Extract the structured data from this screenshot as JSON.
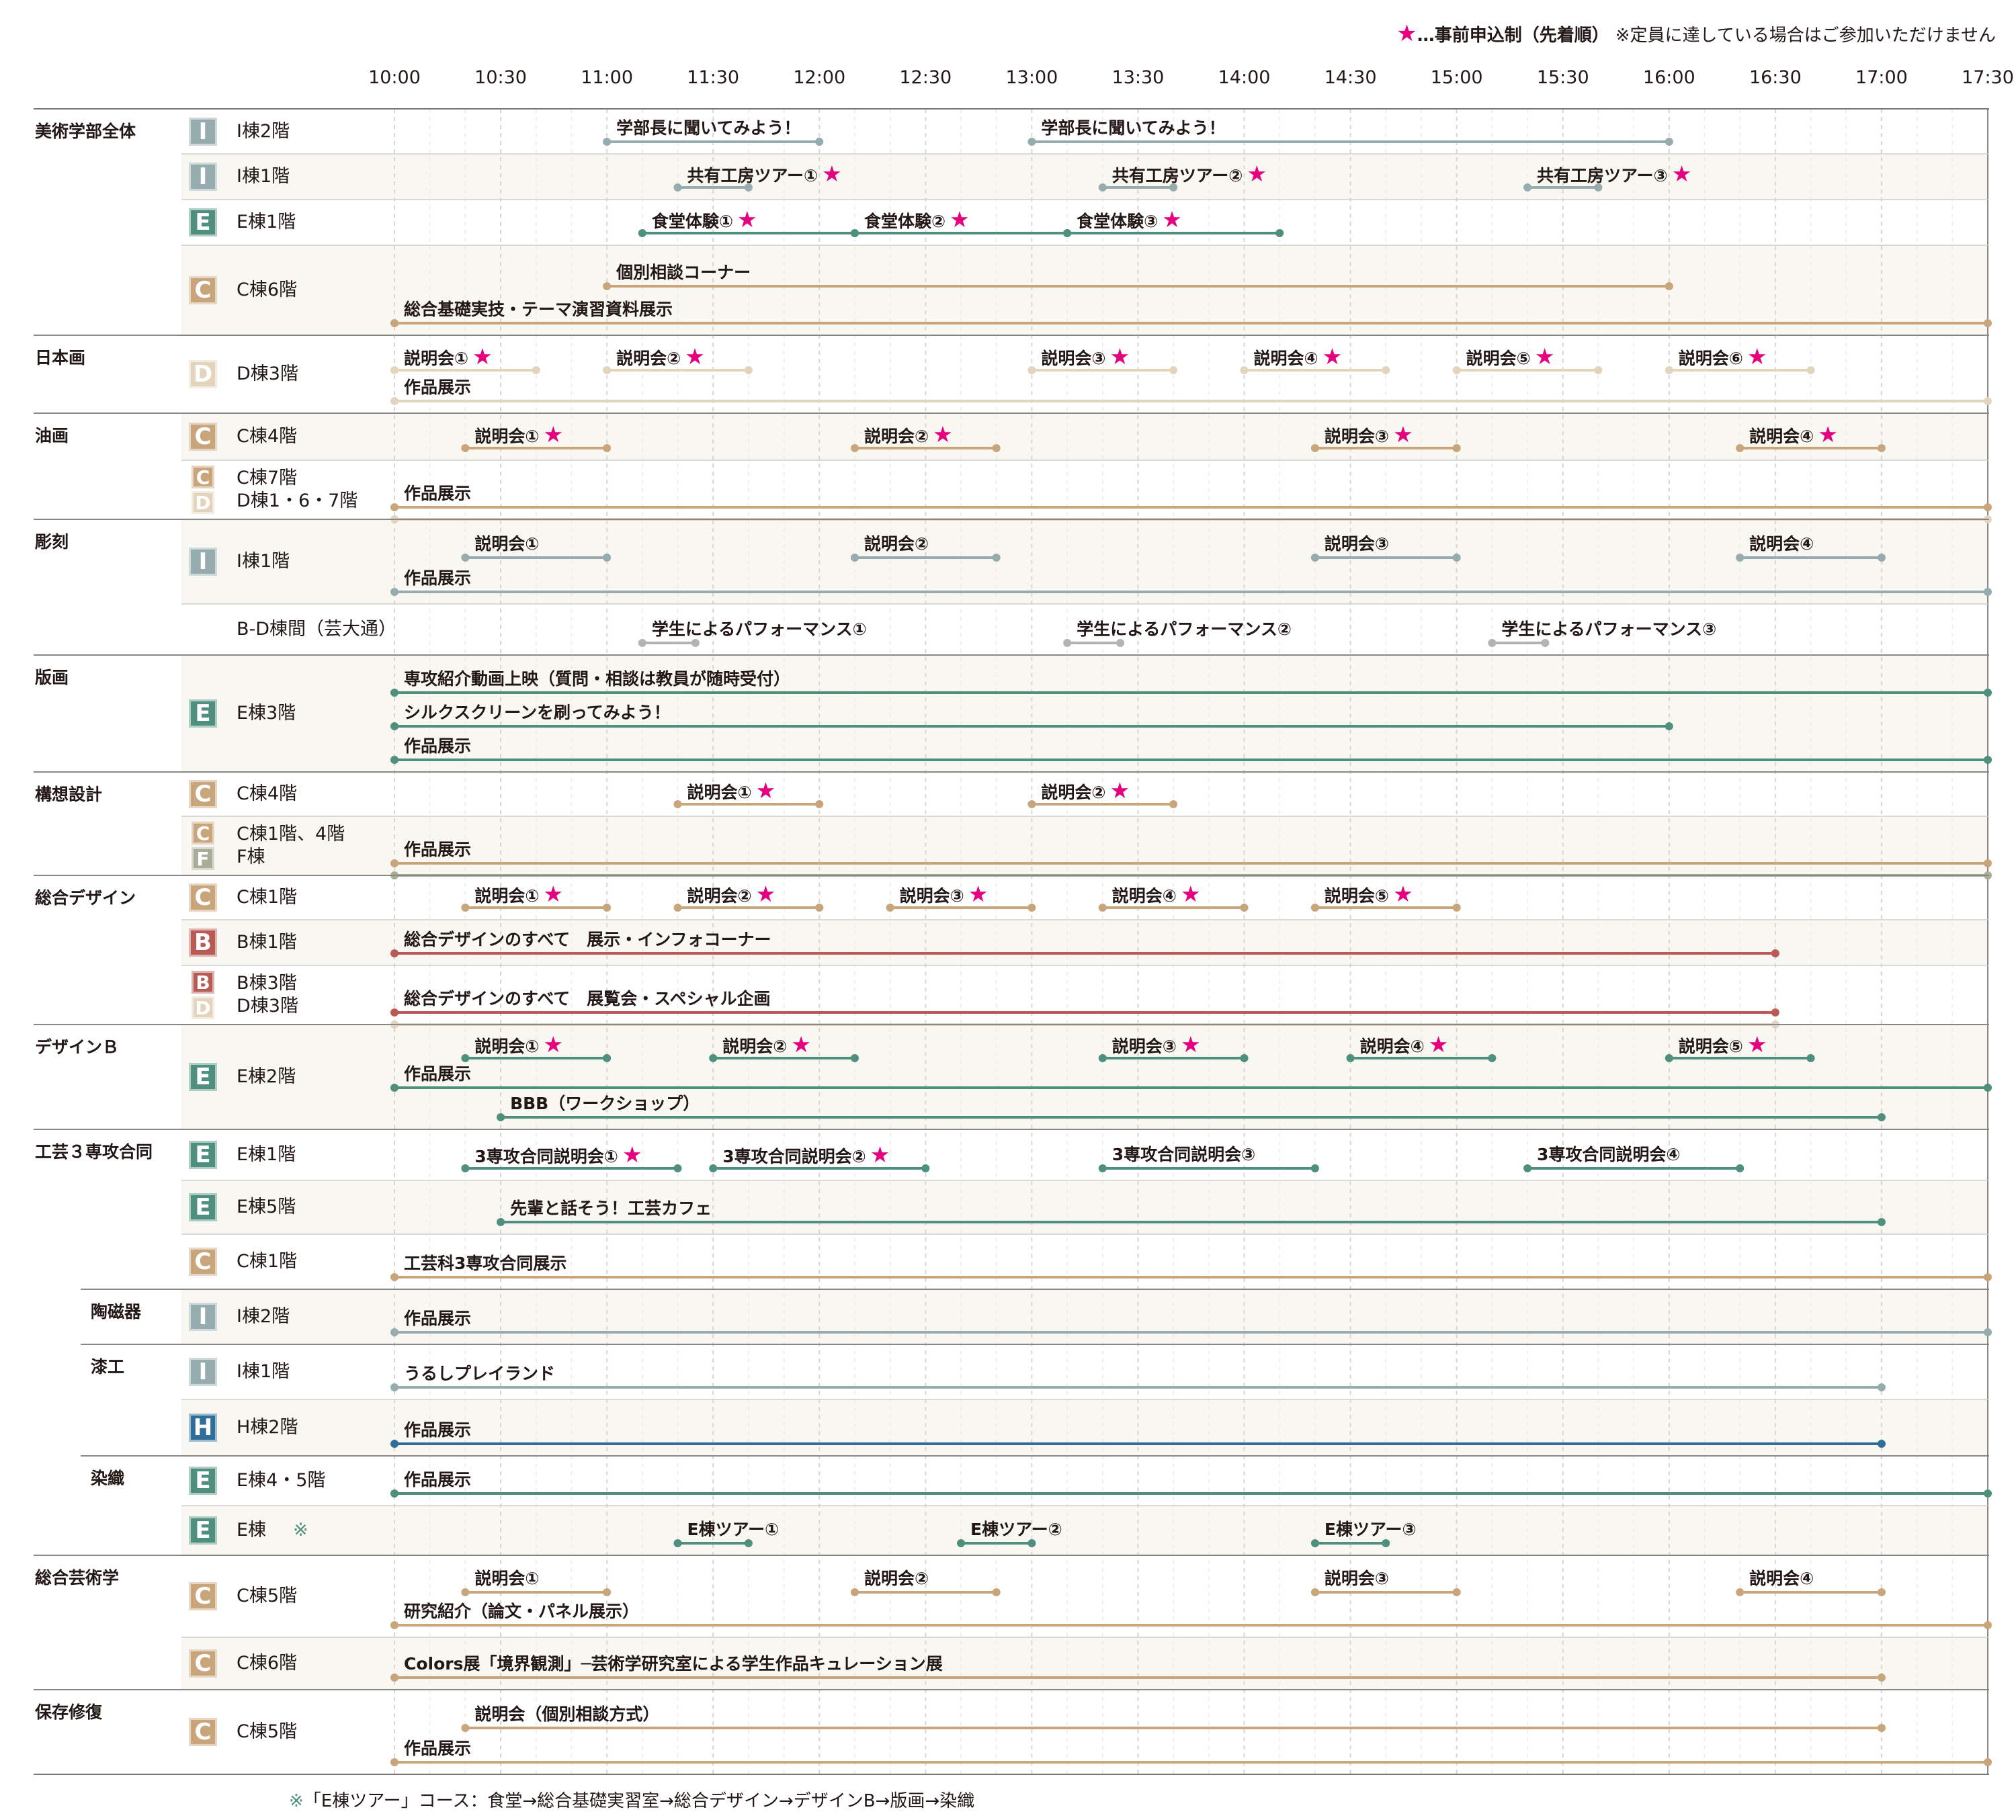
{
  "legend": {
    "star": "★",
    "text": "…事前申込制（先着順）",
    "note": "※定員に達している場合はご参加いただけません"
  },
  "time_axis": [
    "10:00",
    "10:30",
    "11:00",
    "11:30",
    "12:00",
    "12:30",
    "13:00",
    "13:30",
    "14:00",
    "14:30",
    "15:00",
    "15:30",
    "16:00",
    "16:30",
    "17:00",
    "17:30"
  ],
  "colors": {
    "I": "#96acae",
    "E": "#4e8f7e",
    "C": "#c9a57c",
    "D": "#e3d4bd",
    "B": "#b85b55",
    "F": "#a8ad95",
    "H": "#2f6e98",
    "gray": "#b3b3b3",
    "star": "#e4007f"
  },
  "sections": [
    {
      "name": "美術学部全体",
      "rows": [
        {
          "badges": [
            "I"
          ],
          "floor": [
            "I棟2階"
          ],
          "events": [
            {
              "label": "学部長に聞いてみよう！",
              "start": "11:00",
              "end": "12:00",
              "color": "I"
            },
            {
              "label": "学部長に聞いてみよう！",
              "start": "13:00",
              "end": "16:00",
              "color": "I"
            }
          ]
        },
        {
          "badges": [
            "I"
          ],
          "floor": [
            "I棟1階"
          ],
          "events": [
            {
              "label": "共有工房ツアー①",
              "star": true,
              "start": "11:20",
              "end": "11:40",
              "color": "I"
            },
            {
              "label": "共有工房ツアー②",
              "star": true,
              "start": "13:20",
              "end": "13:40",
              "color": "I"
            },
            {
              "label": "共有工房ツアー③",
              "star": true,
              "start": "15:20",
              "end": "15:40",
              "color": "I"
            }
          ]
        },
        {
          "badges": [
            "E"
          ],
          "floor": [
            "E棟1階"
          ],
          "events": [
            {
              "label": "食堂体験①",
              "star": true,
              "start": "11:10",
              "end": "12:10",
              "color": "E"
            },
            {
              "label": "食堂体験②",
              "star": true,
              "start": "12:10",
              "end": "13:10",
              "color": "E"
            },
            {
              "label": "食堂体験③",
              "star": true,
              "start": "13:10",
              "end": "14:10",
              "color": "E"
            }
          ]
        },
        {
          "badges": [
            "C"
          ],
          "floor": [
            "C棟6階"
          ],
          "events": [
            {
              "label": "個別相談コーナー",
              "start": "11:00",
              "end": "16:00",
              "color": "C"
            },
            {
              "label": "総合基礎実技・テーマ演習資料展示",
              "start": "10:00",
              "end": "17:30",
              "color": "C"
            }
          ]
        }
      ]
    },
    {
      "name": "日本画",
      "rows": [
        {
          "badges": [
            "D"
          ],
          "floor": [
            "D棟3階"
          ],
          "events": [
            {
              "label": "説明会①",
              "star": true,
              "start": "10:00",
              "end": "10:40",
              "color": "D"
            },
            {
              "label": "説明会②",
              "star": true,
              "start": "11:00",
              "end": "11:40",
              "color": "D"
            },
            {
              "label": "説明会③",
              "star": true,
              "start": "13:00",
              "end": "13:40",
              "color": "D"
            },
            {
              "label": "説明会④",
              "star": true,
              "start": "14:00",
              "end": "14:40",
              "color": "D"
            },
            {
              "label": "説明会⑤",
              "star": true,
              "start": "15:00",
              "end": "15:40",
              "color": "D"
            },
            {
              "label": "説明会⑥",
              "star": true,
              "start": "16:00",
              "end": "16:40",
              "color": "D"
            },
            {
              "label": "作品展示",
              "start": "10:00",
              "end": "17:30",
              "color": "D"
            }
          ]
        }
      ]
    },
    {
      "name": "油画",
      "rows": [
        {
          "badges": [
            "C"
          ],
          "floor": [
            "C棟4階"
          ],
          "events": [
            {
              "label": "説明会①",
              "star": true,
              "start": "10:20",
              "end": "11:00",
              "color": "C"
            },
            {
              "label": "説明会②",
              "star": true,
              "start": "12:10",
              "end": "12:50",
              "color": "C"
            },
            {
              "label": "説明会③",
              "star": true,
              "start": "14:20",
              "end": "15:00",
              "color": "C"
            },
            {
              "label": "説明会④",
              "star": true,
              "start": "16:20",
              "end": "17:00",
              "color": "C"
            }
          ]
        },
        {
          "badges": [
            "C",
            "D"
          ],
          "floor": [
            "C棟7階",
            "D棟1・6・7階"
          ],
          "events": [
            {
              "label": "作品展示",
              "start": "10:00",
              "end": "17:30",
              "color": "C"
            },
            {
              "label": "",
              "start": "10:00",
              "end": "17:30",
              "color": "D"
            }
          ]
        }
      ]
    },
    {
      "name": "彫刻",
      "rows": [
        {
          "badges": [
            "I"
          ],
          "floor": [
            "I棟1階"
          ],
          "events": [
            {
              "label": "説明会①",
              "start": "10:20",
              "end": "11:00",
              "color": "I"
            },
            {
              "label": "説明会②",
              "start": "12:10",
              "end": "12:50",
              "color": "I"
            },
            {
              "label": "説明会③",
              "start": "14:20",
              "end": "15:00",
              "color": "I"
            },
            {
              "label": "説明会④",
              "start": "16:20",
              "end": "17:00",
              "color": "I"
            },
            {
              "label": "作品展示",
              "start": "10:00",
              "end": "17:30",
              "color": "I"
            }
          ]
        },
        {
          "badges": [],
          "floor": [
            "B-D棟間（芸大通）"
          ],
          "events": [
            {
              "label": "学生によるパフォーマンス①",
              "start": "11:10",
              "end": "11:25",
              "color": "gray"
            },
            {
              "label": "学生によるパフォーマンス②",
              "start": "13:10",
              "end": "13:25",
              "color": "gray"
            },
            {
              "label": "学生によるパフォーマンス③",
              "start": "15:10",
              "end": "15:25",
              "color": "gray"
            }
          ]
        }
      ]
    },
    {
      "name": "版画",
      "rows": [
        {
          "badges": [
            "E"
          ],
          "floor": [
            "E棟3階"
          ],
          "events": [
            {
              "label": "専攻紹介動画上映（質問・相談は教員が随時受付）",
              "start": "10:00",
              "end": "17:30",
              "color": "E"
            },
            {
              "label": "シルクスクリーンを刷ってみよう！",
              "start": "10:00",
              "end": "16:00",
              "color": "E"
            },
            {
              "label": "作品展示",
              "start": "10:00",
              "end": "17:30",
              "color": "E"
            }
          ]
        }
      ]
    },
    {
      "name": "構想設計",
      "rows": [
        {
          "badges": [
            "C"
          ],
          "floor": [
            "C棟4階"
          ],
          "events": [
            {
              "label": "説明会①",
              "star": true,
              "start": "11:20",
              "end": "12:00",
              "color": "C"
            },
            {
              "label": "説明会②",
              "star": true,
              "start": "13:00",
              "end": "13:40",
              "color": "C"
            }
          ]
        },
        {
          "badges": [
            "C",
            "F"
          ],
          "floor": [
            "C棟1階、4階",
            "F棟"
          ],
          "events": [
            {
              "label": "作品展示",
              "start": "10:00",
              "end": "17:30",
              "color": "C"
            },
            {
              "label": "",
              "start": "10:00",
              "end": "17:30",
              "color": "F"
            }
          ]
        }
      ]
    },
    {
      "name": "総合デザイン",
      "rows": [
        {
          "badges": [
            "C"
          ],
          "floor": [
            "C棟1階"
          ],
          "events": [
            {
              "label": "説明会①",
              "star": true,
              "start": "10:20",
              "end": "11:00",
              "color": "C"
            },
            {
              "label": "説明会②",
              "star": true,
              "start": "11:20",
              "end": "12:00",
              "color": "C"
            },
            {
              "label": "説明会③",
              "star": true,
              "start": "12:20",
              "end": "13:00",
              "color": "C"
            },
            {
              "label": "説明会④",
              "star": true,
              "start": "13:20",
              "end": "14:00",
              "color": "C"
            },
            {
              "label": "説明会⑤",
              "star": true,
              "start": "14:20",
              "end": "15:00",
              "color": "C"
            }
          ]
        },
        {
          "badges": [
            "B"
          ],
          "floor": [
            "B棟1階"
          ],
          "events": [
            {
              "label": "総合デザインのすべて　展示・インフォコーナー",
              "start": "10:00",
              "end": "16:30",
              "color": "B"
            }
          ]
        },
        {
          "badges": [
            "B",
            "D"
          ],
          "floor": [
            "B棟3階",
            "D棟3階"
          ],
          "events": [
            {
              "label": "総合デザインのすべて　展覧会・スペシャル企画",
              "start": "10:00",
              "end": "16:30",
              "color": "B"
            },
            {
              "label": "",
              "start": "10:00",
              "end": "16:30",
              "color": "D"
            }
          ]
        }
      ]
    },
    {
      "name": "デザインＢ",
      "rows": [
        {
          "badges": [
            "E"
          ],
          "floor": [
            "E棟2階"
          ],
          "events": [
            {
              "label": "説明会①",
              "star": true,
              "start": "10:20",
              "end": "11:00",
              "color": "E"
            },
            {
              "label": "説明会②",
              "star": true,
              "start": "11:30",
              "end": "12:10",
              "color": "E"
            },
            {
              "label": "説明会③",
              "star": true,
              "start": "13:20",
              "end": "14:00",
              "color": "E"
            },
            {
              "label": "説明会④",
              "star": true,
              "start": "14:30",
              "end": "15:10",
              "color": "E"
            },
            {
              "label": "説明会⑤",
              "star": true,
              "start": "16:00",
              "end": "16:40",
              "color": "E"
            },
            {
              "label": "作品展示",
              "start": "10:00",
              "end": "17:30",
              "color": "E"
            },
            {
              "label": "BBB（ワークショップ）",
              "start": "10:30",
              "end": "17:00",
              "color": "E"
            }
          ]
        }
      ]
    },
    {
      "name": "工芸３専攻合同",
      "rows": [
        {
          "badges": [
            "E"
          ],
          "floor": [
            "E棟1階"
          ],
          "events": [
            {
              "label": "3専攻合同説明会①",
              "star": true,
              "start": "10:20",
              "end": "11:20",
              "color": "E"
            },
            {
              "label": "3専攻合同説明会②",
              "star": true,
              "start": "11:30",
              "end": "12:30",
              "color": "E"
            },
            {
              "label": "3専攻合同説明会③",
              "start": "13:20",
              "end": "14:20",
              "color": "E"
            },
            {
              "label": "3専攻合同説明会④",
              "start": "15:20",
              "end": "16:20",
              "color": "E"
            }
          ]
        },
        {
          "badges": [
            "E"
          ],
          "floor": [
            "E棟5階"
          ],
          "events": [
            {
              "label": "先輩と話そう！工芸カフェ",
              "start": "10:30",
              "end": "17:00",
              "color": "E"
            }
          ]
        },
        {
          "badges": [
            "C"
          ],
          "floor": [
            "C棟1階"
          ],
          "events": [
            {
              "label": "工芸科3専攻合同展示",
              "start": "10:00",
              "end": "17:30",
              "color": "C"
            }
          ]
        }
      ]
    },
    {
      "name": "陶磁器",
      "sub": true,
      "rows": [
        {
          "badges": [
            "I"
          ],
          "floor": [
            "I棟2階"
          ],
          "events": [
            {
              "label": "作品展示",
              "start": "10:00",
              "end": "17:30",
              "color": "I"
            }
          ]
        }
      ]
    },
    {
      "name": "漆工",
      "sub": true,
      "rows": [
        {
          "badges": [
            "I"
          ],
          "floor": [
            "I棟1階"
          ],
          "events": [
            {
              "label": "うるしプレイランド",
              "start": "10:00",
              "end": "17:00",
              "color": "I"
            }
          ]
        },
        {
          "badges": [
            "H"
          ],
          "floor": [
            "H棟2階"
          ],
          "events": [
            {
              "label": "作品展示",
              "start": "10:00",
              "end": "17:00",
              "color": "H"
            }
          ]
        }
      ]
    },
    {
      "name": "染織",
      "sub": true,
      "rows": [
        {
          "badges": [
            "E"
          ],
          "floor": [
            "E棟4・5階"
          ],
          "events": [
            {
              "label": "作品展示",
              "start": "10:00",
              "end": "17:30",
              "color": "E"
            }
          ]
        },
        {
          "badges": [
            "E"
          ],
          "floor": [
            "E棟"
          ],
          "mark": "※",
          "events": [
            {
              "label": "E棟ツアー①",
              "start": "11:20",
              "end": "11:40",
              "color": "E"
            },
            {
              "label": "E棟ツアー②",
              "start": "12:40",
              "end": "13:00",
              "color": "E"
            },
            {
              "label": "E棟ツアー③",
              "start": "14:20",
              "end": "14:40",
              "color": "E"
            }
          ]
        }
      ]
    },
    {
      "name": "総合芸術学",
      "rows": [
        {
          "badges": [
            "C"
          ],
          "floor": [
            "C棟5階"
          ],
          "events": [
            {
              "label": "説明会①",
              "start": "10:20",
              "end": "11:00",
              "color": "C"
            },
            {
              "label": "説明会②",
              "start": "12:10",
              "end": "12:50",
              "color": "C"
            },
            {
              "label": "説明会③",
              "start": "14:20",
              "end": "15:00",
              "color": "C"
            },
            {
              "label": "説明会④",
              "start": "16:20",
              "end": "17:00",
              "color": "C"
            },
            {
              "label": "研究紹介（論文・パネル展示）",
              "start": "10:00",
              "end": "17:30",
              "color": "C"
            }
          ]
        },
        {
          "badges": [
            "C"
          ],
          "floor": [
            "C棟6階"
          ],
          "events": [
            {
              "label": "Colors展「境界観測」─芸術学研究室による学生作品キュレーション展",
              "start": "10:00",
              "end": "17:00",
              "color": "C"
            }
          ]
        }
      ]
    },
    {
      "name": "保存修復",
      "rows": [
        {
          "badges": [
            "C"
          ],
          "floor": [
            "C棟5階"
          ],
          "events": [
            {
              "label": "説明会（個別相談方式）",
              "start": "10:20",
              "end": "17:00",
              "color": "C"
            },
            {
              "label": "作品展示",
              "start": "10:00",
              "end": "17:30",
              "color": "C"
            }
          ]
        }
      ]
    }
  ],
  "footnote": {
    "asterisk": "※",
    "text": "「E棟ツアー」コース：食堂→総合基礎実習室→総合デザイン→デザインB→版画→染織"
  }
}
